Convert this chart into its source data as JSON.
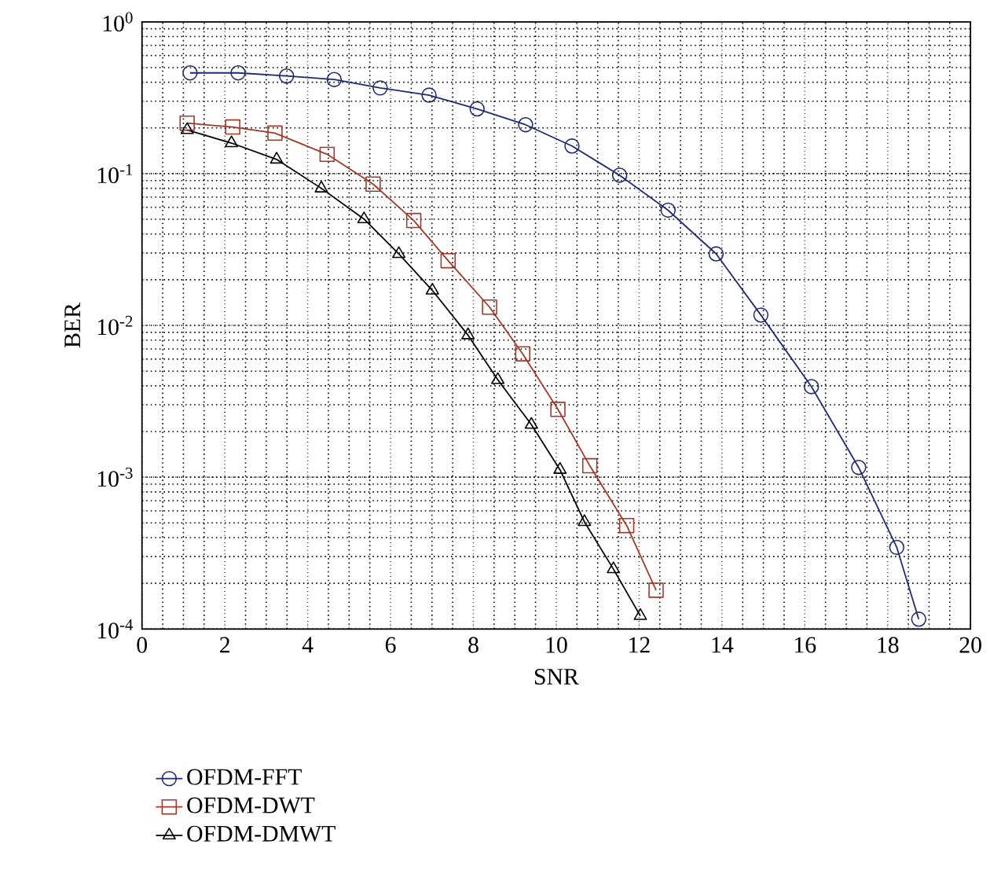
{
  "chart_data": {
    "type": "line",
    "xlabel": "SNR",
    "ylabel": "BER",
    "log": "y",
    "grid": true,
    "legend": "bottom left",
    "xlim": [
      0,
      20
    ],
    "xticks": [
      0,
      2,
      4,
      6,
      8,
      10,
      12,
      14,
      16,
      18,
      20
    ],
    "ylim": [
      0.0001,
      1
    ],
    "yticks": [
      {
        "value": 0.0001,
        "label": "10$^{-4}$"
      },
      {
        "value": 0.001,
        "label": "10$^{-3}$"
      },
      {
        "value": 0.01,
        "label": "10$^{-2}$"
      },
      {
        "value": 0.1,
        "label": "10$^{-1}$"
      },
      {
        "value": 1,
        "label": "10$^{0}$"
      }
    ],
    "series": [
      {
        "name": "OFDM-FFT",
        "color": "#1f2a6e",
        "marker": "circle",
        "x": [
          1.16,
          2.32,
          3.49,
          4.64,
          5.75,
          6.93,
          8.09,
          9.26,
          10.38,
          11.53,
          12.7,
          13.86,
          14.94,
          16.16,
          17.3,
          18.22,
          18.75
        ],
        "values": [
          0.461,
          0.461,
          0.44,
          0.417,
          0.367,
          0.329,
          0.267,
          0.21,
          0.152,
          0.0976,
          0.0574,
          0.0296,
          0.0117,
          0.00395,
          0.00116,
          0.000345,
          0.000116
        ]
      },
      {
        "name": "OFDM-DWT",
        "color": "#a0392a",
        "marker": "square",
        "x": [
          1.09,
          2.19,
          3.21,
          4.47,
          5.58,
          6.56,
          7.39,
          8.39,
          9.19,
          10.04,
          10.81,
          11.7,
          12.41
        ],
        "values": [
          0.215,
          0.203,
          0.185,
          0.134,
          0.0853,
          0.0491,
          0.0267,
          0.0132,
          0.0065,
          0.0028,
          0.00119,
          0.00048,
          0.00018
        ]
      },
      {
        "name": "OFDM-DMWT",
        "color": "#000000",
        "marker": "triangle",
        "x": [
          1.09,
          2.16,
          3.25,
          4.33,
          5.36,
          6.2,
          7.01,
          7.87,
          8.59,
          9.4,
          10.09,
          10.68,
          11.38,
          12.03
        ],
        "values": [
          0.194,
          0.159,
          0.124,
          0.08,
          0.0502,
          0.0296,
          0.017,
          0.00863,
          0.00438,
          0.00222,
          0.00112,
          0.000508,
          0.000248,
          0.000122
        ]
      }
    ]
  }
}
